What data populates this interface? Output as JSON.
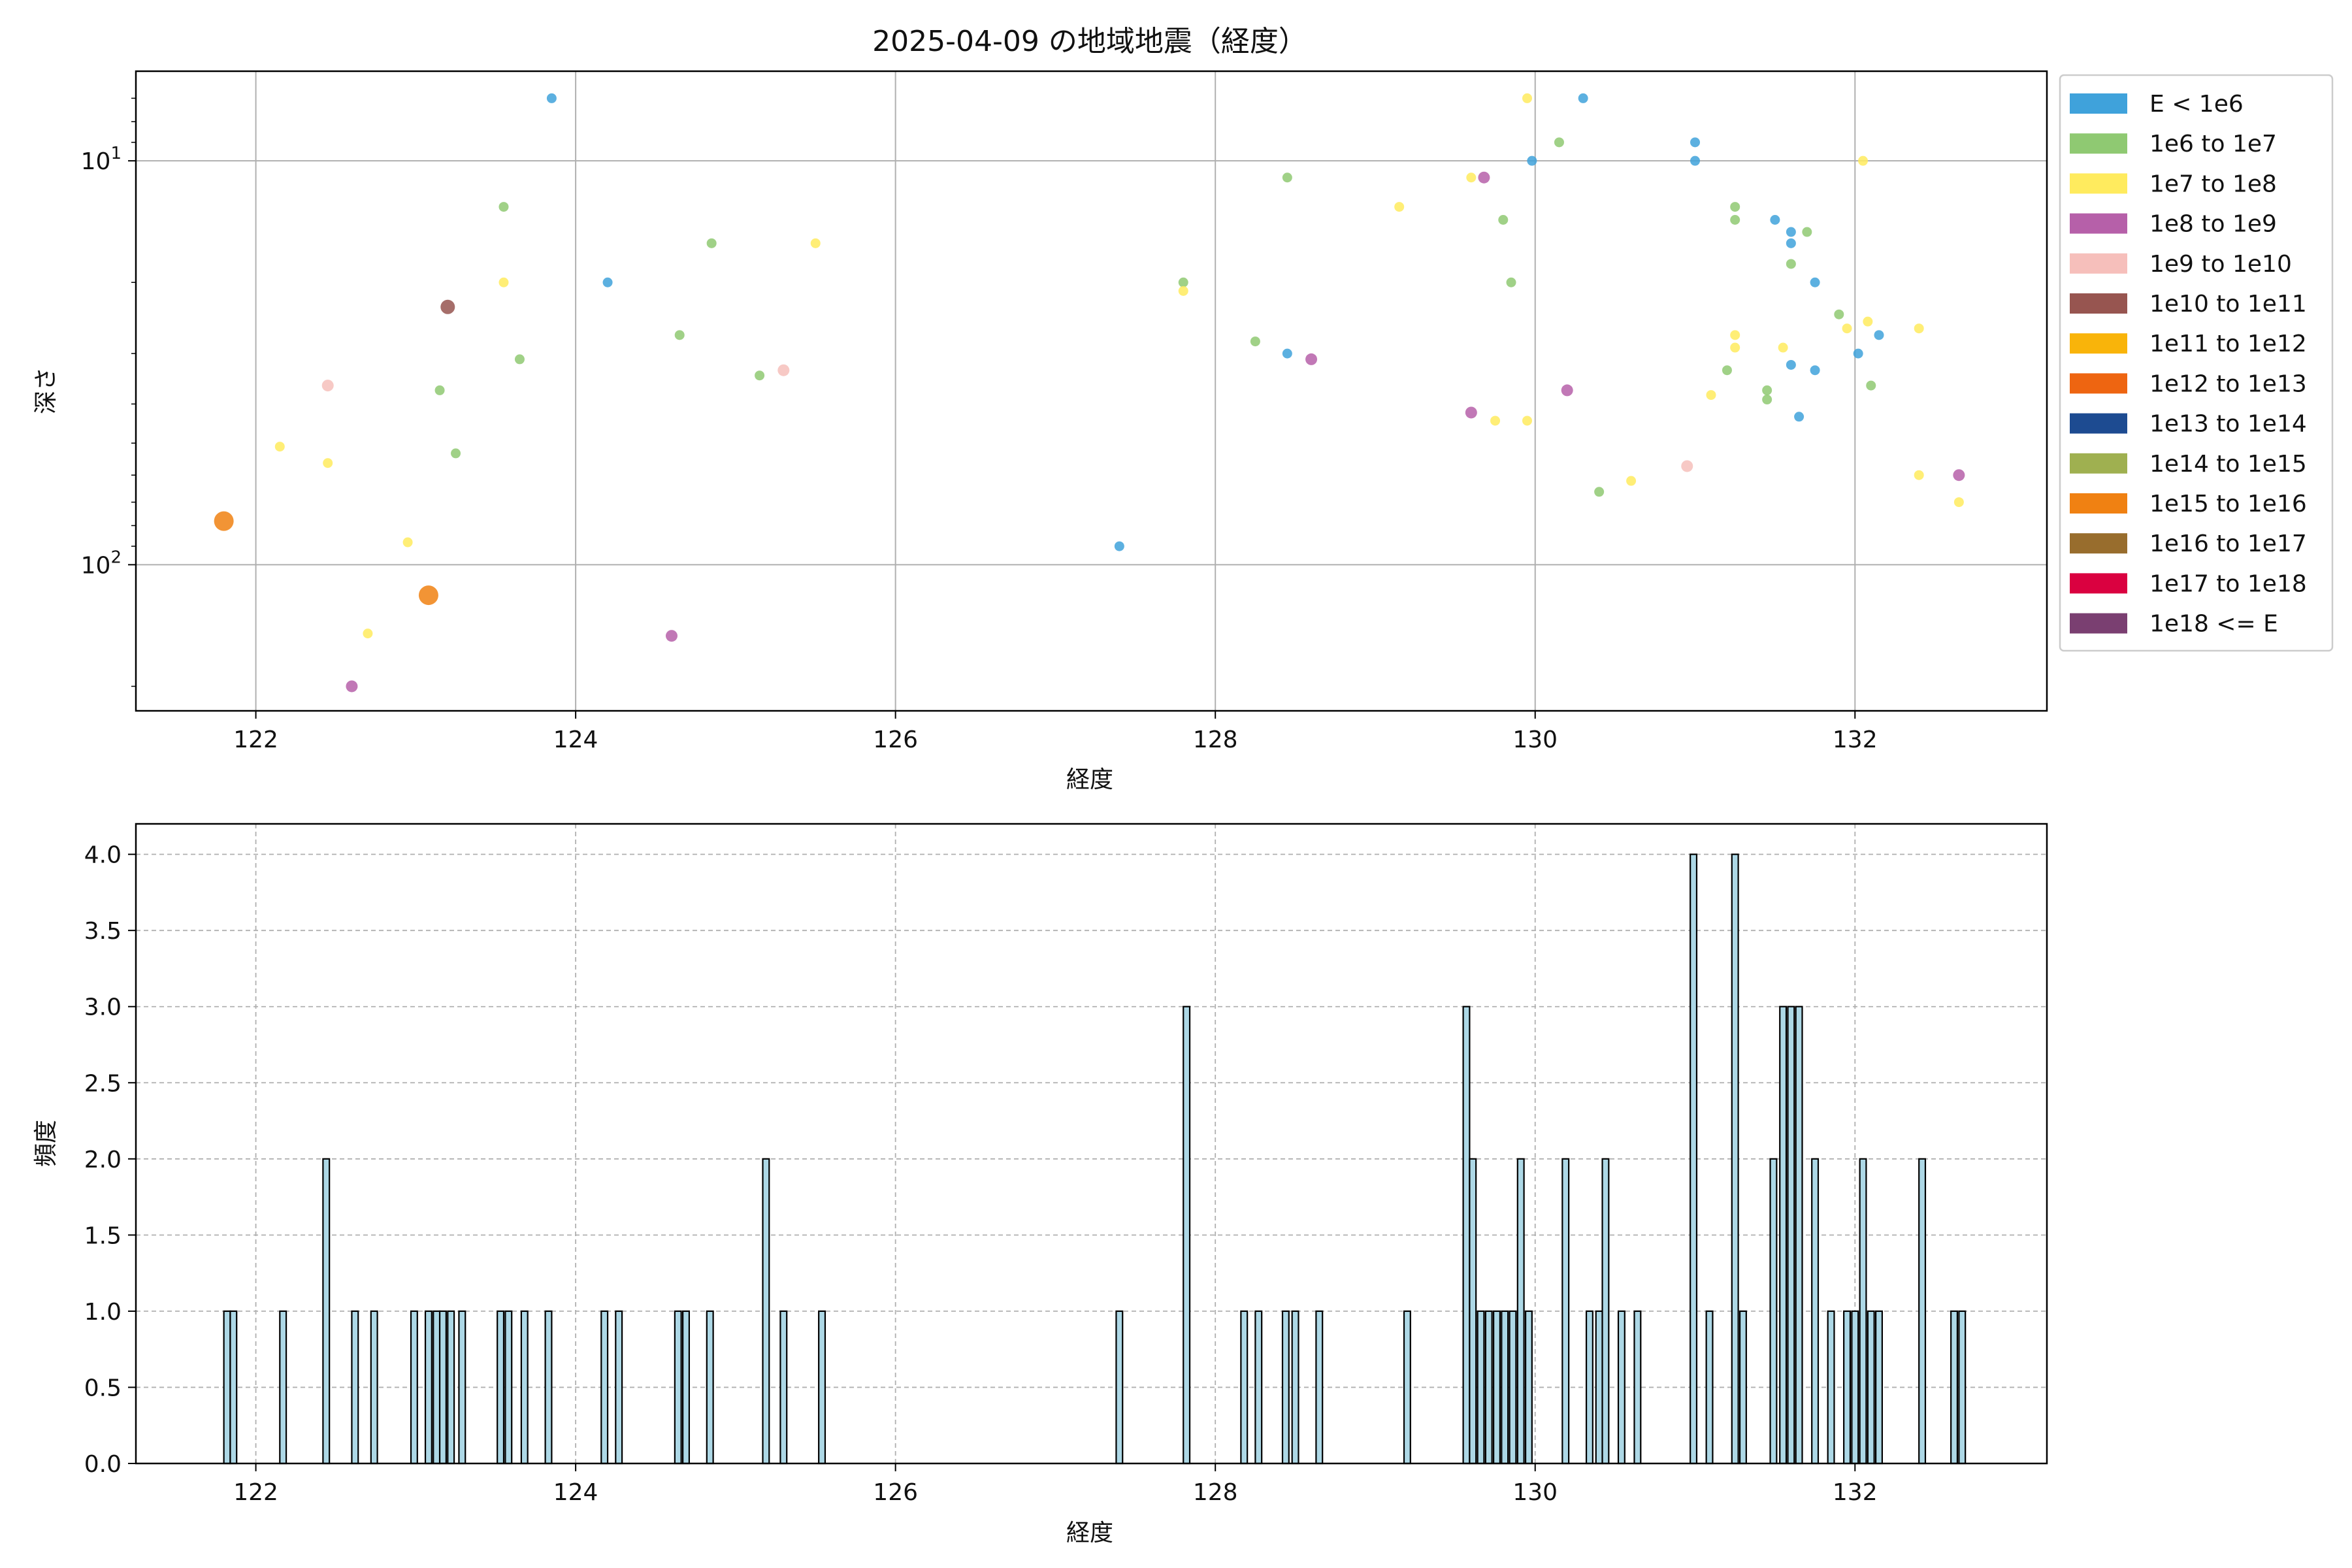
{
  "chart_data": [
    {
      "type": "scatter",
      "title": "2025-04-09 の地域地震（経度）",
      "xlabel": "経度",
      "ylabel": "深さ",
      "xlim": [
        121.25,
        133.2
      ],
      "x_ticks": [
        122,
        124,
        126,
        128,
        130,
        132
      ],
      "y_scale": "log",
      "y_inverted": true,
      "y_range": [
        6,
        230
      ],
      "y_major_ticks": [
        {
          "value": 10,
          "label": "10^1"
        },
        {
          "value": 100,
          "label": "10^2"
        }
      ],
      "y_minor_ticks": [
        7,
        8,
        9,
        20,
        30,
        40,
        50,
        60,
        70,
        80,
        90,
        200
      ],
      "grid": "major",
      "legend_position": "outside-right",
      "legend": [
        {
          "label": "E < 1e6",
          "color": "#3fa2db"
        },
        {
          "label": "1e6 to 1e7",
          "color": "#8fc972"
        },
        {
          "label": "1e7 to 1e8",
          "color": "#ffeb5e"
        },
        {
          "label": "1e8 to 1e9",
          "color": "#b660a9"
        },
        {
          "label": "1e9 to 1e10",
          "color": "#f6bfbb"
        },
        {
          "label": "1e10 to 1e11",
          "color": "#975550"
        },
        {
          "label": "1e11 to 1e12",
          "color": "#f9b40a"
        },
        {
          "label": "1e12 to 1e13",
          "color": "#ee6511"
        },
        {
          "label": "1e13 to 1e14",
          "color": "#1d4b91"
        },
        {
          "label": "1e14 to 1e15",
          "color": "#9fb050"
        },
        {
          "label": "1e15 to 1e16",
          "color": "#f08112"
        },
        {
          "label": "1e16 to 1e17",
          "color": "#986d2d"
        },
        {
          "label": "1e17 to 1e18",
          "color": "#da0140"
        },
        {
          "label": "1e18 <= E",
          "color": "#7a3f71"
        }
      ],
      "series": [
        {
          "name": "E < 1e6",
          "color": "#3fa2db",
          "points": [
            [
              123.85,
              7
            ],
            [
              124.2,
              20
            ],
            [
              127.4,
              90
            ],
            [
              128.45,
              30
            ],
            [
              129.98,
              10
            ],
            [
              130.3,
              7
            ],
            [
              131.0,
              9
            ],
            [
              131.0,
              10
            ],
            [
              131.5,
              14
            ],
            [
              131.6,
              15
            ],
            [
              131.6,
              16
            ],
            [
              131.75,
              20
            ],
            [
              131.6,
              32
            ],
            [
              131.65,
              43
            ],
            [
              131.75,
              33
            ],
            [
              132.02,
              30
            ],
            [
              132.15,
              27
            ]
          ]
        },
        {
          "name": "1e6 to 1e7",
          "color": "#8fc972",
          "points": [
            [
              123.55,
              13
            ],
            [
              123.15,
              37
            ],
            [
              123.25,
              53
            ],
            [
              123.65,
              31
            ],
            [
              124.65,
              27
            ],
            [
              124.85,
              16
            ],
            [
              125.15,
              34
            ],
            [
              127.8,
              20
            ],
            [
              128.25,
              28
            ],
            [
              128.45,
              11
            ],
            [
              129.8,
              14
            ],
            [
              129.85,
              20
            ],
            [
              130.15,
              9
            ],
            [
              130.4,
              66
            ],
            [
              131.25,
              13
            ],
            [
              131.25,
              14
            ],
            [
              131.2,
              33
            ],
            [
              131.45,
              37
            ],
            [
              131.45,
              39
            ],
            [
              131.6,
              18
            ],
            [
              131.7,
              15
            ],
            [
              131.9,
              24
            ],
            [
              132.1,
              36
            ]
          ]
        },
        {
          "name": "1e7 to 1e8",
          "color": "#ffeb5e",
          "points": [
            [
              122.15,
              51
            ],
            [
              122.45,
              56
            ],
            [
              122.95,
              88
            ],
            [
              122.7,
              148
            ],
            [
              123.55,
              20
            ],
            [
              125.5,
              16
            ],
            [
              127.8,
              21
            ],
            [
              129.15,
              13
            ],
            [
              129.6,
              11
            ],
            [
              129.95,
              7
            ],
            [
              129.75,
              44
            ],
            [
              129.95,
              44
            ],
            [
              130.6,
              62
            ],
            [
              131.1,
              38
            ],
            [
              131.25,
              27
            ],
            [
              131.25,
              29
            ],
            [
              131.55,
              29
            ],
            [
              132.05,
              10
            ],
            [
              131.95,
              26
            ],
            [
              132.08,
              25
            ],
            [
              132.4,
              26
            ],
            [
              132.4,
              60
            ],
            [
              132.65,
              70
            ]
          ]
        },
        {
          "name": "1e8 to 1e9",
          "color": "#b660a9",
          "points": [
            [
              122.6,
              200
            ],
            [
              124.6,
              150
            ],
            [
              128.6,
              31
            ],
            [
              129.6,
              42
            ],
            [
              129.68,
              11
            ],
            [
              130.2,
              37
            ],
            [
              132.65,
              60
            ]
          ]
        },
        {
          "name": "1e9 to 1e10",
          "color": "#f6bfbb",
          "points": [
            [
              122.45,
              36
            ],
            [
              125.3,
              33
            ],
            [
              130.95,
              57
            ]
          ]
        },
        {
          "name": "1e10 to 1e11",
          "color": "#975550",
          "points": [
            [
              123.2,
              23
            ]
          ]
        },
        {
          "name": "1e15 to 1e16",
          "color": "#f08112",
          "points": [
            [
              121.8,
              78
            ],
            [
              123.08,
              119
            ]
          ]
        }
      ]
    },
    {
      "type": "bar",
      "title": "",
      "xlabel": "経度",
      "ylabel": "頻度",
      "xlim": [
        121.25,
        133.2
      ],
      "ylim": [
        0,
        4.2
      ],
      "x_ticks": [
        122,
        124,
        126,
        128,
        130,
        132
      ],
      "y_ticks": [
        0.0,
        0.5,
        1.0,
        1.5,
        2.0,
        2.5,
        3.0,
        3.5,
        4.0
      ],
      "y_tick_labels": [
        "0.0",
        "0.5",
        "1.0",
        "1.5",
        "2.0",
        "2.5",
        "3.0",
        "3.5",
        "4.0"
      ],
      "grid": "dashed",
      "bar_color": "#add8e6",
      "bin_width": 0.04,
      "bins": [
        [
          121.8,
          1
        ],
        [
          121.84,
          1
        ],
        [
          122.15,
          1
        ],
        [
          122.42,
          2
        ],
        [
          122.6,
          1
        ],
        [
          122.72,
          1
        ],
        [
          122.97,
          1
        ],
        [
          123.06,
          1
        ],
        [
          123.11,
          1
        ],
        [
          123.15,
          1
        ],
        [
          123.2,
          1
        ],
        [
          123.27,
          1
        ],
        [
          123.51,
          1
        ],
        [
          123.56,
          1
        ],
        [
          123.66,
          1
        ],
        [
          123.81,
          1
        ],
        [
          124.16,
          1
        ],
        [
          124.25,
          1
        ],
        [
          124.62,
          1
        ],
        [
          124.67,
          1
        ],
        [
          124.82,
          1
        ],
        [
          125.17,
          2
        ],
        [
          125.28,
          1
        ],
        [
          125.52,
          1
        ],
        [
          127.38,
          1
        ],
        [
          127.8,
          3
        ],
        [
          128.16,
          1
        ],
        [
          128.25,
          1
        ],
        [
          128.42,
          1
        ],
        [
          128.48,
          1
        ],
        [
          128.63,
          1
        ],
        [
          129.18,
          1
        ],
        [
          129.55,
          3
        ],
        [
          129.59,
          2
        ],
        [
          129.64,
          1
        ],
        [
          129.69,
          1
        ],
        [
          129.74,
          1
        ],
        [
          129.79,
          1
        ],
        [
          129.84,
          1
        ],
        [
          129.89,
          2
        ],
        [
          129.94,
          1
        ],
        [
          130.17,
          2
        ],
        [
          130.32,
          1
        ],
        [
          130.38,
          1
        ],
        [
          130.42,
          2
        ],
        [
          130.52,
          1
        ],
        [
          130.62,
          1
        ],
        [
          130.97,
          4
        ],
        [
          131.07,
          1
        ],
        [
          131.23,
          4
        ],
        [
          131.28,
          1
        ],
        [
          131.47,
          2
        ],
        [
          131.53,
          3
        ],
        [
          131.58,
          3
        ],
        [
          131.63,
          3
        ],
        [
          131.73,
          2
        ],
        [
          131.83,
          1
        ],
        [
          131.93,
          1
        ],
        [
          131.98,
          1
        ],
        [
          132.03,
          2
        ],
        [
          132.08,
          1
        ],
        [
          132.13,
          1
        ],
        [
          132.4,
          2
        ],
        [
          132.6,
          1
        ],
        [
          132.65,
          1
        ]
      ]
    }
  ]
}
